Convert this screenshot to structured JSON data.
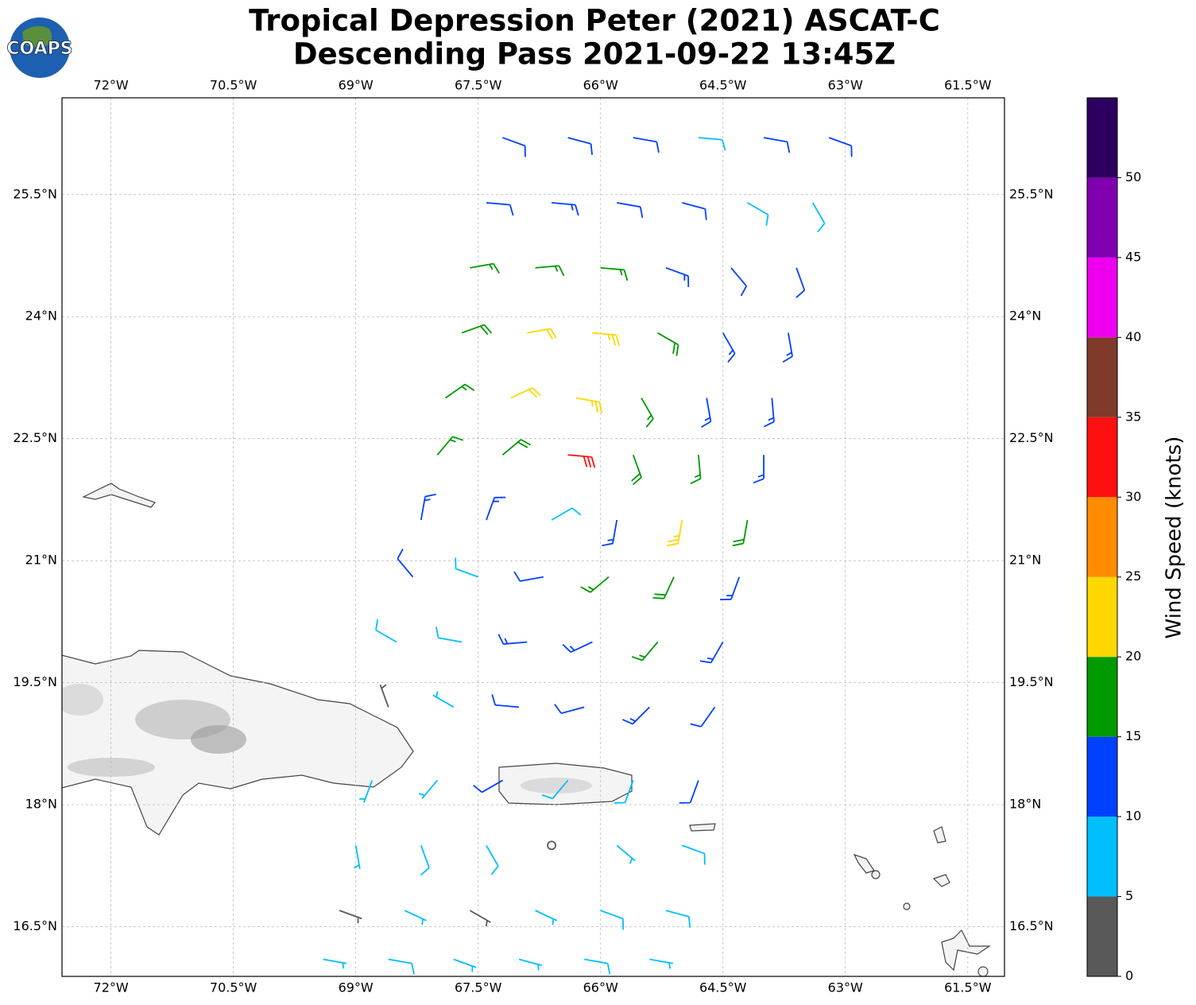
{
  "title": [
    "Tropical Depression Peter (2021) ASCAT-C",
    "Descending Pass 2021-09-22 13:45Z"
  ],
  "logo": "COAPS",
  "map": {
    "xlim": [
      -72.6,
      -61.05
    ],
    "ylim": [
      15.89,
      26.69
    ],
    "grid": true,
    "xticks": [
      {
        "value": -72,
        "label": "72°W"
      },
      {
        "value": -70.5,
        "label": "70.5°W"
      },
      {
        "value": -69,
        "label": "69°W"
      },
      {
        "value": -67.5,
        "label": "67.5°W"
      },
      {
        "value": -66,
        "label": "66°W"
      },
      {
        "value": -64.5,
        "label": "64.5°W"
      },
      {
        "value": -63,
        "label": "63°W"
      },
      {
        "value": -61.5,
        "label": "61.5°W"
      }
    ],
    "yticks": [
      {
        "value": 16.5,
        "label": "16.5°N"
      },
      {
        "value": 18,
        "label": "18°N"
      },
      {
        "value": 19.5,
        "label": "19.5°N"
      },
      {
        "value": 21,
        "label": "21°N"
      },
      {
        "value": 22.5,
        "label": "22.5°N"
      },
      {
        "value": 24,
        "label": "24°N"
      },
      {
        "value": 25.5,
        "label": "25.5°N"
      }
    ],
    "barbs": {
      "lon": [
        -67.2,
        -66.4,
        -65.6,
        -64.8,
        -64.0,
        -63.2,
        -67.4,
        -66.6,
        -65.8,
        -65.0,
        -64.2,
        -63.4,
        -67.6,
        -66.8,
        -66.0,
        -65.2,
        -64.4,
        -63.6,
        -67.7,
        -66.9,
        -66.1,
        -65.3,
        -64.5,
        -63.7,
        -67.9,
        -67.1,
        -66.3,
        -65.5,
        -64.7,
        -63.9,
        -68.0,
        -67.2,
        -66.4,
        -65.6,
        -64.8,
        -64.0,
        -68.2,
        -67.4,
        -66.6,
        -65.8,
        -65.0,
        -64.2,
        -68.3,
        -67.5,
        -66.7,
        -65.9,
        -65.1,
        -64.3,
        -68.5,
        -67.7,
        -66.9,
        -66.1,
        -65.3,
        -64.5,
        -68.6,
        -67.8,
        -67.0,
        -66.2,
        -65.4,
        -64.6,
        -68.8,
        -68.0,
        -67.2,
        -66.4,
        -65.6,
        -64.8,
        -69.0,
        -68.2,
        -67.4,
        -66.6,
        -65.8,
        -65.0,
        -69.2,
        -68.4,
        -67.6,
        -66.8,
        -66.0,
        -65.2,
        -69.4,
        -68.6,
        -67.8,
        -67.0,
        -66.2,
        -65.4
      ],
      "lat": [
        26.2,
        26.2,
        26.2,
        26.2,
        26.2,
        26.2,
        25.4,
        25.4,
        25.4,
        25.4,
        25.4,
        25.4,
        24.6,
        24.6,
        24.6,
        24.6,
        24.6,
        24.6,
        23.8,
        23.8,
        23.8,
        23.8,
        23.8,
        23.8,
        23.0,
        23.0,
        23.0,
        23.0,
        23.0,
        23.0,
        22.3,
        22.3,
        22.3,
        22.3,
        22.3,
        22.3,
        21.5,
        21.5,
        21.5,
        21.5,
        21.5,
        21.5,
        20.8,
        20.8,
        20.8,
        20.8,
        20.8,
        20.8,
        20.0,
        20.0,
        20.0,
        20.0,
        20.0,
        20.0,
        19.2,
        19.2,
        19.2,
        19.2,
        19.2,
        19.2,
        18.3,
        18.3,
        18.3,
        18.3,
        18.3,
        18.3,
        17.5,
        17.5,
        17.5,
        17.5,
        17.5,
        17.5,
        16.7,
        16.7,
        16.7,
        16.7,
        16.7,
        16.7,
        16.1,
        16.1,
        16.1,
        16.1,
        16.1,
        16.1
      ],
      "speed": [
        12,
        12,
        11,
        9,
        12,
        12,
        12,
        14,
        12,
        12,
        9,
        8,
        17,
        17,
        16,
        13,
        12,
        12,
        18,
        22,
        23,
        18,
        14,
        13,
        17,
        22,
        24,
        16,
        14,
        13,
        17,
        18,
        32,
        18,
        17,
        14,
        14,
        13,
        8,
        13,
        24,
        18,
        12,
        9,
        11,
        15,
        18,
        14,
        8,
        9,
        13,
        13,
        16,
        13,
        3,
        6,
        12,
        12,
        14,
        12,
        7,
        5,
        11,
        9,
        8,
        11,
        7,
        8,
        9,
        2,
        6,
        8,
        3,
        6,
        4,
        6,
        8,
        8,
        6,
        8,
        6,
        7,
        8,
        7
      ],
      "direction": [
        110,
        105,
        100,
        95,
        100,
        110,
        95,
        95,
        100,
        105,
        120,
        150,
        80,
        85,
        95,
        110,
        140,
        160,
        70,
        80,
        95,
        120,
        150,
        170,
        55,
        65,
        100,
        150,
        170,
        175,
        40,
        50,
        95,
        160,
        175,
        180,
        10,
        20,
        60,
        190,
        190,
        190,
        320,
        290,
        260,
        230,
        205,
        200,
        300,
        280,
        265,
        245,
        220,
        210,
        340,
        300,
        275,
        255,
        225,
        215,
        200,
        220,
        240,
        220,
        200,
        200,
        170,
        160,
        150,
        0,
        130,
        110,
        110,
        115,
        120,
        115,
        110,
        105,
        100,
        100,
        110,
        105,
        100,
        100
      ]
    }
  },
  "colorbar": {
    "label": "Wind Speed (knots)",
    "lim": [
      0,
      55
    ],
    "levels": [
      0,
      5,
      10,
      15,
      20,
      25,
      30,
      35,
      40,
      45,
      50,
      55
    ],
    "colors": [
      "#595959",
      "#00bfff",
      "#0040ff",
      "#009900",
      "#ffd700",
      "#ff8c00",
      "#ff1010",
      "#7f3a2a",
      "#ee00ee",
      "#8000b0",
      "#2d005f"
    ],
    "ticks": [
      0,
      5,
      10,
      15,
      20,
      25,
      30,
      35,
      40,
      45,
      50
    ]
  }
}
